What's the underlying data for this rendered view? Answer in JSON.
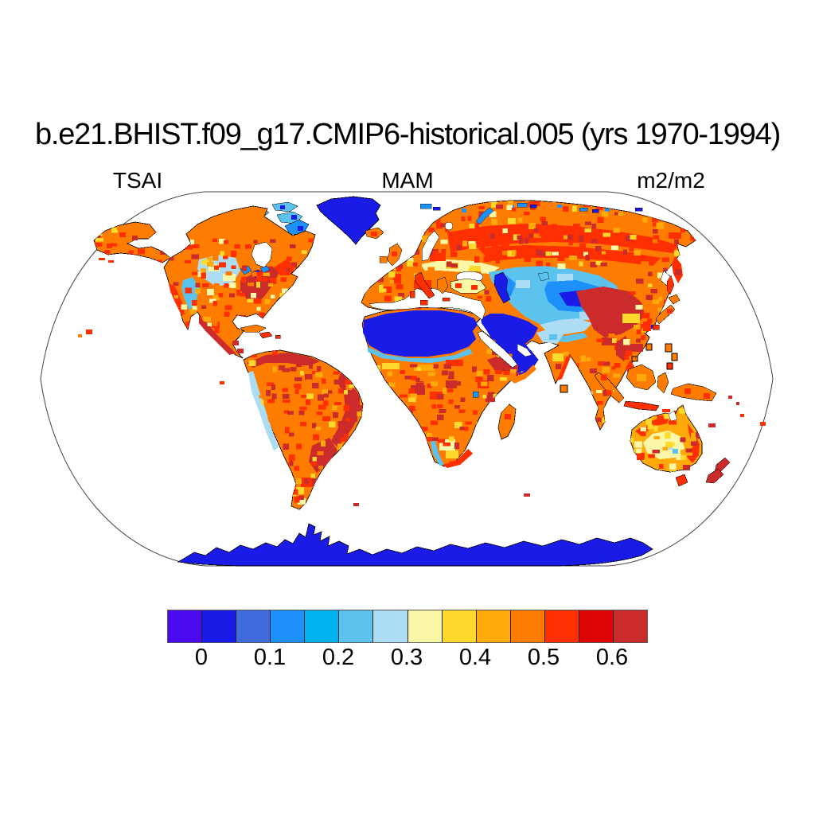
{
  "title": "b.e21.BHIST.f09_g17.CMIP6-historical.005 (yrs 1970-1994)",
  "subtitle": {
    "left": "TSAI",
    "center": "MAM",
    "right": "m2/m2"
  },
  "colorbar": {
    "tick_labels": [
      "0",
      "0.1",
      "0.2",
      "0.3",
      "0.4",
      "0.5",
      "0.6"
    ],
    "colors": [
      "#4B0AF0",
      "#1B1BE8",
      "#3E6BDE",
      "#1E90FA",
      "#00B2F0",
      "#5BC3EE",
      "#ADDCF5",
      "#FAF8A6",
      "#FFD92C",
      "#FFA90B",
      "#FE7D00",
      "#FE2F00",
      "#DC0503",
      "#CC2B2B"
    ]
  },
  "chart_data": {
    "type": "heatmap",
    "title": "b.e21.BHIST.f09_g17.CMIP6-historical.005 (yrs 1970-1994)",
    "variable": "TSAI",
    "season": "MAM",
    "units": "m2/m2",
    "projection": "Robinson world map",
    "colorbar_ticks": [
      0,
      0.1,
      0.2,
      0.3,
      0.4,
      0.5,
      0.6
    ],
    "bin_width": 0.05,
    "n_color_bins": 14,
    "bin_colors": [
      "#4B0AF0",
      "#1B1BE8",
      "#3E6BDE",
      "#1E90FA",
      "#00B2F0",
      "#5BC3EE",
      "#ADDCF5",
      "#FAF8A6",
      "#FFD92C",
      "#FFA90B",
      "#FE7D00",
      "#FE2F00",
      "#DC0503",
      "#CC2B2B"
    ],
    "legend_position": "bottom",
    "grid": false,
    "regions": [
      {
        "name": "Antarctica",
        "approx_value": "0 - 0.05"
      },
      {
        "name": "Greenland ice sheet",
        "approx_value": "0 - 0.05"
      },
      {
        "name": "Sahara Desert",
        "approx_value": "0 - 0.05"
      },
      {
        "name": "Arabian Peninsula / Iranian plateau",
        "approx_value": "0 - 0.1"
      },
      {
        "name": "Central Asian deserts (Kazakhstan, Taklamakan)",
        "approx_value": "0.05 - 0.25"
      },
      {
        "name": "High Arctic tundra (N Canada, arctic islands)",
        "approx_value": "0.1 - 0.3"
      },
      {
        "name": "Boreal forest belt (Siberia, Canada)",
        "approx_value": "0.5 - 0.6"
      },
      {
        "name": "Eastern North America",
        "approx_value": "0.55 - 0.65"
      },
      {
        "name": "Amazon basin",
        "approx_value": "0.5 - 0.55"
      },
      {
        "name": "Eastern Brazil, Mongolia/NE China, New Zealand",
        "approx_value": "0.6 - 0.65"
      },
      {
        "name": "Australian interior",
        "approx_value": "0.3 - 0.45"
      },
      {
        "name": "Western US / Andes / Himalaya fringe",
        "approx_value": "0.15 - 0.3"
      }
    ]
  }
}
